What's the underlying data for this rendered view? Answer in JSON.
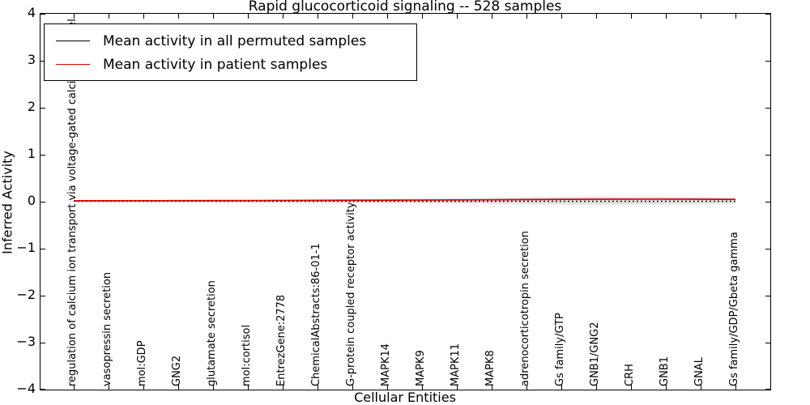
{
  "title": "Rapid glucocorticoid signaling -- 528 samples",
  "legend": {
    "items": [
      {
        "label": "Mean activity in all permuted samples",
        "color": "#000000"
      },
      {
        "label": "Mean activity in patient samples",
        "color": "#dd0000"
      }
    ]
  },
  "ytick_labels": [
    "4",
    "3",
    "2",
    "1",
    "0",
    "−1",
    "−2",
    "−3",
    "−4"
  ],
  "chart_data": {
    "type": "line",
    "title": "Rapid glucocorticoid signaling -- 528 samples",
    "xlabel": "Cellular Entities",
    "ylabel": "Inferred Activity",
    "ylim": [
      -4,
      4
    ],
    "yticks": [
      4,
      3,
      2,
      1,
      0,
      -1,
      -2,
      -3,
      -4
    ],
    "grid": false,
    "legend_position": "upper left",
    "categories": [
      "regulation of calcium ion transport via voltage-gated calcium channel",
      "vasopressin secretion",
      "mol:GDP",
      "GNG2",
      "glutamate secretion",
      "mol:cortisol",
      "EntrezGene:2778",
      "ChemicalAbstracts:86-01-1",
      "G-protein coupled receptor activity",
      "MAPK14",
      "MAPK9",
      "MAPK11",
      "MAPK8",
      "adrenocorticotropin secretion",
      "Gs family/GTP",
      "GNB1/GNG2",
      "CRH",
      "GNB1",
      "GNAL",
      "Gs family/GDP/Gbeta gamma"
    ],
    "series": [
      {
        "name": "Mean activity in all permuted samples",
        "color": "#000000",
        "style": "dotted",
        "values": [
          0,
          0,
          0,
          0,
          0,
          0,
          0,
          0,
          0,
          0,
          0,
          0,
          0,
          0,
          0,
          0,
          0,
          0,
          0,
          0
        ]
      },
      {
        "name": "Mean activity in patient samples",
        "color": "#dd0000",
        "style": "solid",
        "values": [
          0,
          0,
          0,
          0.005,
          0.005,
          0.01,
          0.01,
          0.01,
          0.015,
          0.015,
          0.02,
          0.02,
          0.025,
          0.03,
          0.035,
          0.04,
          0.045,
          0.045,
          0.04,
          0.04
        ]
      }
    ],
    "shaded_band": {
      "description": "light gray uncertainty band around the mean lines, widening toward the right side",
      "color": "#d8d8d8",
      "max_halfwidth": 0.1
    }
  }
}
